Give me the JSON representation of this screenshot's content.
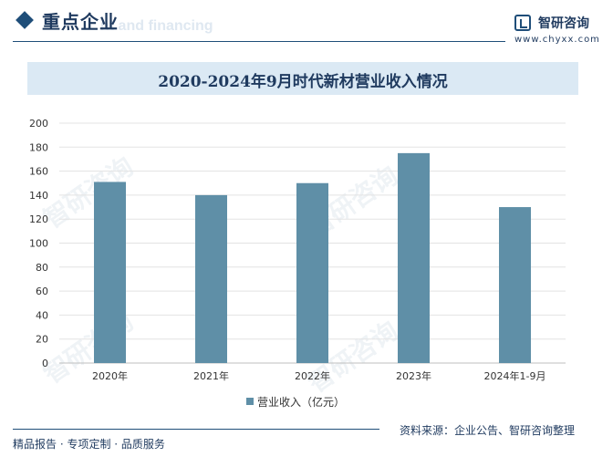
{
  "header": {
    "title": "重点企业",
    "title_bg_text": "nt and financing",
    "logo_name": "智研咨询",
    "logo_url": "www.chyxx.com",
    "accent_color": "#1f4e79"
  },
  "chart_data": {
    "type": "bar",
    "title": "2020-2024年9月时代新材营业收入情况",
    "categories": [
      "2020年",
      "2021年",
      "2022年",
      "2023年",
      "2024年1-9月"
    ],
    "series": [
      {
        "name": "营业收入（亿元）",
        "values": [
          151,
          140,
          150,
          175,
          130
        ],
        "color": "#5f8fa7"
      }
    ],
    "ylim": [
      0,
      200
    ],
    "yticks": [
      0,
      20,
      40,
      60,
      80,
      100,
      120,
      140,
      160,
      180,
      200
    ],
    "grid": true,
    "legend": "bottom-center"
  },
  "footer": {
    "left": "精品报告 · 专项定制 · 品质服务",
    "right": "资料来源：企业公告、智研咨询整理"
  },
  "watermark": "智研咨询"
}
